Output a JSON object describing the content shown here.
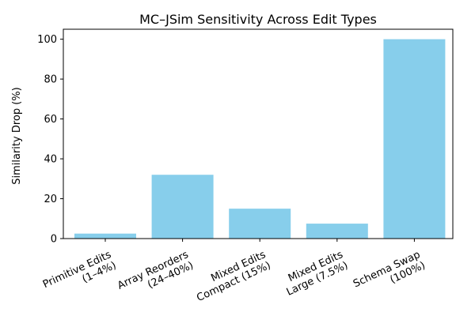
{
  "chart_data": {
    "type": "bar",
    "title": "MC–JSim Sensitivity Across Edit Types",
    "xlabel": "",
    "ylabel": "Similarity Drop (%)",
    "ylim": [
      0,
      105
    ],
    "yticks": [
      0,
      20,
      40,
      60,
      80,
      100
    ],
    "categories": [
      [
        "Primitive Edits",
        "(1–4%)"
      ],
      [
        "Array Reorders",
        "(24–40%)"
      ],
      [
        "Mixed Edits",
        "Compact (15%)"
      ],
      [
        "Mixed Edits",
        "Large (7.5%)"
      ],
      [
        "Schema Swap",
        "(100%)"
      ]
    ],
    "values": [
      2.5,
      32,
      15,
      7.5,
      100
    ],
    "bar_color": "#87CEEB",
    "grid": false,
    "legend": "none"
  }
}
